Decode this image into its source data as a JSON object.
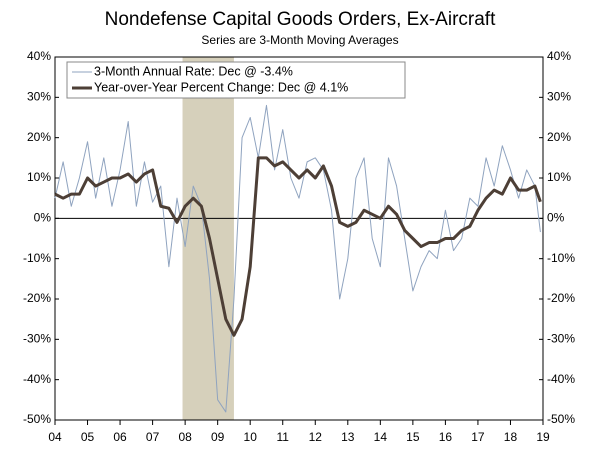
{
  "chart_data": {
    "type": "line",
    "title": "Nondefense Capital Goods Orders, Ex-Aircraft",
    "subtitle": "Series are 3-Month Moving Averages",
    "x": [
      2004,
      2004.25,
      2004.5,
      2004.75,
      2005,
      2005.25,
      2005.5,
      2005.75,
      2006,
      2006.25,
      2006.5,
      2006.75,
      2007,
      2007.25,
      2007.5,
      2007.75,
      2008,
      2008.25,
      2008.5,
      2008.75,
      2009,
      2009.25,
      2009.5,
      2009.75,
      2010,
      2010.25,
      2010.5,
      2010.75,
      2011,
      2011.25,
      2011.5,
      2011.75,
      2012,
      2012.25,
      2012.5,
      2012.75,
      2013,
      2013.25,
      2013.5,
      2013.75,
      2014,
      2014.25,
      2014.5,
      2014.75,
      2015,
      2015.25,
      2015.5,
      2015.75,
      2016,
      2016.25,
      2016.5,
      2016.75,
      2017,
      2017.25,
      2017.5,
      2017.75,
      2018,
      2018.25,
      2018.5,
      2018.75,
      2018.92
    ],
    "series": [
      {
        "name": "3-Month Annual Rate: Dec @ -3.4%",
        "color": "#8fa3bf",
        "width": 1,
        "values": [
          5,
          14,
          3,
          10,
          19,
          5,
          15,
          3,
          12,
          24,
          3,
          14,
          4,
          8,
          -12,
          5,
          -7,
          8,
          3,
          -15,
          -45,
          -48,
          -20,
          20,
          25,
          15,
          28,
          12,
          22,
          10,
          5,
          14,
          15,
          12,
          2,
          -20,
          -10,
          10,
          15,
          -5,
          -12,
          15,
          8,
          -5,
          -18,
          -12,
          -8,
          -10,
          2,
          -8,
          -5,
          5,
          3,
          15,
          8,
          18,
          12,
          5,
          12,
          8,
          -3.4
        ]
      },
      {
        "name": "Year-over-Year Percent Change: Dec @ 4.1%",
        "color": "#4d3f36",
        "width": 3,
        "values": [
          6,
          5,
          6,
          6,
          10,
          8,
          9,
          10,
          10,
          11,
          9,
          11,
          12,
          3,
          2.5,
          -1,
          3,
          5,
          3,
          -5,
          -15,
          -25,
          -29,
          -25,
          -12,
          15,
          15,
          13,
          14,
          12,
          10,
          12,
          10,
          13,
          8,
          -1,
          -2,
          -1,
          2,
          1,
          0,
          3,
          1,
          -3,
          -5,
          -7,
          -6,
          -6,
          -5,
          -5,
          -3,
          -2,
          2,
          5,
          7,
          6,
          10,
          7,
          7,
          8,
          4.1
        ]
      }
    ],
    "recession": [
      2007.92,
      2009.5
    ],
    "xlim": [
      2004,
      2019
    ],
    "xticks": [
      {
        "value": 2004,
        "label": "04"
      },
      {
        "value": 2005,
        "label": "05"
      },
      {
        "value": 2006,
        "label": "06"
      },
      {
        "value": 2007,
        "label": "07"
      },
      {
        "value": 2008,
        "label": "08"
      },
      {
        "value": 2009,
        "label": "09"
      },
      {
        "value": 2010,
        "label": "10"
      },
      {
        "value": 2011,
        "label": "11"
      },
      {
        "value": 2012,
        "label": "12"
      },
      {
        "value": 2013,
        "label": "13"
      },
      {
        "value": 2014,
        "label": "14"
      },
      {
        "value": 2015,
        "label": "15"
      },
      {
        "value": 2016,
        "label": "16"
      },
      {
        "value": 2017,
        "label": "17"
      },
      {
        "value": 2018,
        "label": "18"
      },
      {
        "value": 2019,
        "label": "19"
      }
    ],
    "ylim": [
      -50,
      40
    ],
    "yticks": [
      {
        "value": -50,
        "label": "-50%"
      },
      {
        "value": -40,
        "label": "-40%"
      },
      {
        "value": -30,
        "label": "-30%"
      },
      {
        "value": -20,
        "label": "-20%"
      },
      {
        "value": -10,
        "label": "-10%"
      },
      {
        "value": 0,
        "label": "0%"
      },
      {
        "value": 10,
        "label": "10%"
      },
      {
        "value": 20,
        "label": "20%"
      },
      {
        "value": 30,
        "label": "30%"
      },
      {
        "value": 40,
        "label": "40%"
      }
    ]
  }
}
